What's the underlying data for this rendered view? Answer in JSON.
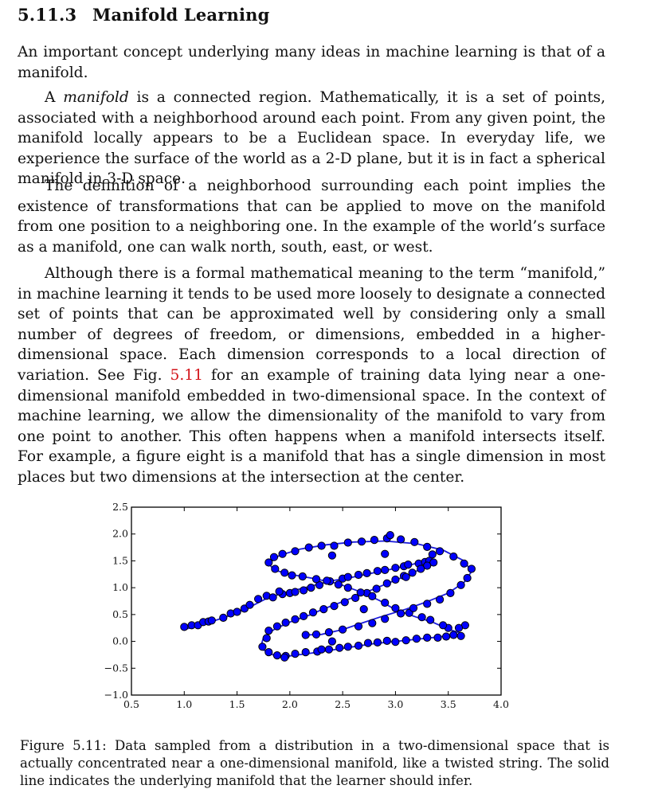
{
  "section": {
    "number": "5.11.3",
    "title": "Manifold Learning"
  },
  "paragraphs": {
    "p1": "An important concept underlying many ideas in machine learning is that of a manifold.",
    "p2_em": "manifold",
    "p2_pre": "A ",
    "p2_post": " is a connected region. Mathematically, it is a set of points, associated with a neighborhood around each point. From any given point, the manifold locally appears to be a Euclidean space. In everyday life, we experience the surface of the world as a 2-D plane, but it is in fact a spherical manifold in 3-D space.",
    "p3": "The definition of a neighborhood surrounding each point implies the existence of transformations that can be applied to move on the manifold from one position to a neighboring one. In the example of the world’s surface as a manifold, one can walk north, south, east, or west.",
    "p4_pre": "Although there is a formal mathematical meaning to the term “manifold,” in machine learning it tends to be used more loosely to designate a connected set of points that can be approximated well by considering only a small number of degrees of freedom, or dimensions, embedded in a higher-dimensional space. Each dimension corresponds to a local direction of variation. See Fig. ",
    "p4_ref": "5.11",
    "p4_post": " for an example of training data lying near a one-dimensional manifold embedded in two-dimensional space. In the context of machine learning, we allow the dimensionality of the manifold to vary from one point to another. This often happens when a manifold intersects itself. For example, a figure eight is a manifold that has a single dimension in most places but two dimensions at the intersection at the center."
  },
  "caption": "Figure 5.11: Data sampled from a distribution in a two-dimensional space that is actually concentrated near a one-dimensional manifold, like a twisted string. The solid line indicates the underlying manifold that the learner should infer.",
  "colors": {
    "curve": "#1b1bdc",
    "points": "#0000ff",
    "point_edge": "#000000"
  },
  "chart_data": {
    "type": "scatter",
    "title": "",
    "xlabel": "",
    "ylabel": "",
    "xlim": [
      0.5,
      4.0
    ],
    "ylim": [
      -1.0,
      2.5
    ],
    "x_ticks": [
      "0.5",
      "1.0",
      "1.5",
      "2.0",
      "2.5",
      "3.0",
      "3.5",
      "4.0"
    ],
    "y_ticks": [
      "2.5",
      "2.0",
      "1.5",
      "1.0",
      "0.5",
      "0.0",
      "−0.5",
      "−1.0"
    ],
    "grid": false,
    "legend": "none",
    "curve": [
      [
        1.0,
        0.22
      ],
      [
        1.2,
        0.33
      ],
      [
        1.4,
        0.46
      ],
      [
        1.6,
        0.62
      ],
      [
        1.8,
        0.82
      ],
      [
        2.0,
        0.93
      ],
      [
        2.2,
        1.03
      ],
      [
        2.4,
        1.13
      ],
      [
        2.6,
        1.2
      ],
      [
        2.8,
        1.28
      ],
      [
        3.0,
        1.36
      ],
      [
        3.15,
        1.43
      ],
      [
        3.3,
        1.5
      ],
      [
        3.35,
        1.45
      ],
      [
        3.3,
        1.39
      ],
      [
        3.2,
        1.31
      ],
      [
        3.05,
        1.18
      ],
      [
        2.9,
        1.06
      ],
      [
        2.7,
        0.9
      ],
      [
        2.5,
        0.74
      ],
      [
        2.3,
        0.59
      ],
      [
        2.2,
        0.5
      ],
      [
        2.0,
        0.36
      ],
      [
        1.85,
        0.22
      ],
      [
        1.75,
        0.07
      ],
      [
        1.72,
        -0.13
      ],
      [
        1.85,
        -0.26
      ],
      [
        2.0,
        -0.27
      ],
      [
        2.2,
        -0.22
      ],
      [
        2.4,
        -0.16
      ],
      [
        2.6,
        -0.1
      ],
      [
        2.8,
        -0.04
      ],
      [
        3.0,
        0.0
      ],
      [
        3.2,
        0.04
      ],
      [
        3.4,
        0.08
      ],
      [
        3.55,
        0.12
      ],
      [
        3.65,
        0.13
      ],
      [
        3.5,
        0.23
      ],
      [
        3.35,
        0.36
      ],
      [
        3.2,
        0.45
      ],
      [
        3.0,
        0.59
      ],
      [
        2.85,
        0.76
      ],
      [
        2.7,
        0.9
      ],
      [
        2.45,
        1.08
      ],
      [
        2.2,
        1.18
      ],
      [
        2.0,
        1.25
      ],
      [
        1.85,
        1.33
      ],
      [
        1.8,
        1.45
      ],
      [
        1.9,
        1.6
      ],
      [
        2.1,
        1.72
      ],
      [
        2.35,
        1.8
      ],
      [
        2.6,
        1.85
      ],
      [
        2.9,
        1.87
      ],
      [
        3.2,
        1.82
      ],
      [
        3.45,
        1.7
      ],
      [
        3.65,
        1.5
      ],
      [
        3.72,
        1.3
      ],
      [
        3.65,
        1.1
      ],
      [
        3.5,
        0.9
      ],
      [
        3.3,
        0.74
      ],
      [
        3.1,
        0.6
      ],
      [
        2.85,
        0.45
      ],
      [
        2.65,
        0.32
      ],
      [
        2.5,
        0.22
      ],
      [
        2.3,
        0.13
      ],
      [
        2.15,
        0.12
      ]
    ],
    "points": [
      [
        1.0,
        0.27
      ],
      [
        1.07,
        0.3
      ],
      [
        1.13,
        0.3
      ],
      [
        1.18,
        0.36
      ],
      [
        1.23,
        0.37
      ],
      [
        1.26,
        0.39
      ],
      [
        1.37,
        0.44
      ],
      [
        1.44,
        0.52
      ],
      [
        1.5,
        0.55
      ],
      [
        1.57,
        0.61
      ],
      [
        1.62,
        0.68
      ],
      [
        1.7,
        0.79
      ],
      [
        1.78,
        0.85
      ],
      [
        1.84,
        0.82
      ],
      [
        1.93,
        0.88
      ],
      [
        2.0,
        0.9
      ],
      [
        2.05,
        0.92
      ],
      [
        2.13,
        0.95
      ],
      [
        2.2,
        1.0
      ],
      [
        2.28,
        1.05
      ],
      [
        2.38,
        1.12
      ],
      [
        2.5,
        1.17
      ],
      [
        2.55,
        1.2
      ],
      [
        2.65,
        1.24
      ],
      [
        2.73,
        1.27
      ],
      [
        2.83,
        1.31
      ],
      [
        2.9,
        1.33
      ],
      [
        3.0,
        1.37
      ],
      [
        3.08,
        1.4
      ],
      [
        3.12,
        1.43
      ],
      [
        3.22,
        1.45
      ],
      [
        3.28,
        1.48
      ],
      [
        3.32,
        1.5
      ],
      [
        3.36,
        1.47
      ],
      [
        3.3,
        1.41
      ],
      [
        3.24,
        1.35
      ],
      [
        3.16,
        1.28
      ],
      [
        3.08,
        1.22
      ],
      [
        3.0,
        1.15
      ],
      [
        2.92,
        1.08
      ],
      [
        2.82,
        0.98
      ],
      [
        2.73,
        0.9
      ],
      [
        2.62,
        0.81
      ],
      [
        2.52,
        0.73
      ],
      [
        2.42,
        0.66
      ],
      [
        2.32,
        0.6
      ],
      [
        2.22,
        0.54
      ],
      [
        2.13,
        0.47
      ],
      [
        2.05,
        0.41
      ],
      [
        1.96,
        0.35
      ],
      [
        1.88,
        0.28
      ],
      [
        1.8,
        0.2
      ],
      [
        1.78,
        0.06
      ],
      [
        1.74,
        -0.1
      ],
      [
        1.8,
        -0.2
      ],
      [
        1.88,
        -0.26
      ],
      [
        1.96,
        -0.27
      ],
      [
        2.05,
        -0.23
      ],
      [
        2.15,
        -0.2
      ],
      [
        2.26,
        -0.19
      ],
      [
        2.37,
        -0.15
      ],
      [
        2.47,
        -0.12
      ],
      [
        2.55,
        -0.1
      ],
      [
        2.65,
        -0.08
      ],
      [
        2.74,
        -0.03
      ],
      [
        2.83,
        -0.02
      ],
      [
        2.92,
        0.01
      ],
      [
        3.0,
        -0.01
      ],
      [
        3.1,
        0.02
      ],
      [
        3.2,
        0.05
      ],
      [
        3.3,
        0.07
      ],
      [
        3.4,
        0.07
      ],
      [
        3.48,
        0.09
      ],
      [
        3.55,
        0.12
      ],
      [
        3.62,
        0.1
      ],
      [
        3.66,
        0.3
      ],
      [
        3.6,
        0.25
      ],
      [
        3.5,
        0.25
      ],
      [
        3.45,
        0.3
      ],
      [
        3.33,
        0.4
      ],
      [
        3.25,
        0.45
      ],
      [
        3.13,
        0.53
      ],
      [
        3.0,
        0.62
      ],
      [
        2.9,
        0.72
      ],
      [
        2.78,
        0.84
      ],
      [
        2.67,
        0.91
      ],
      [
        2.55,
        1.0
      ],
      [
        2.46,
        1.06
      ],
      [
        2.35,
        1.13
      ],
      [
        2.25,
        1.16
      ],
      [
        2.12,
        1.21
      ],
      [
        2.02,
        1.23
      ],
      [
        1.95,
        1.28
      ],
      [
        1.86,
        1.35
      ],
      [
        1.8,
        1.47
      ],
      [
        1.85,
        1.57
      ],
      [
        1.93,
        1.63
      ],
      [
        2.05,
        1.68
      ],
      [
        2.18,
        1.75
      ],
      [
        2.3,
        1.78
      ],
      [
        2.42,
        1.78
      ],
      [
        2.55,
        1.84
      ],
      [
        2.68,
        1.86
      ],
      [
        2.8,
        1.89
      ],
      [
        2.92,
        1.92
      ],
      [
        3.05,
        1.9
      ],
      [
        3.18,
        1.85
      ],
      [
        3.3,
        1.76
      ],
      [
        3.42,
        1.68
      ],
      [
        3.55,
        1.58
      ],
      [
        3.65,
        1.45
      ],
      [
        3.72,
        1.35
      ],
      [
        3.68,
        1.18
      ],
      [
        3.62,
        1.05
      ],
      [
        3.52,
        0.9
      ],
      [
        3.42,
        0.78
      ],
      [
        3.3,
        0.7
      ],
      [
        3.17,
        0.62
      ],
      [
        3.05,
        0.52
      ],
      [
        2.9,
        0.42
      ],
      [
        2.78,
        0.34
      ],
      [
        2.65,
        0.28
      ],
      [
        2.5,
        0.22
      ],
      [
        2.37,
        0.17
      ],
      [
        2.25,
        0.13
      ],
      [
        2.15,
        0.12
      ],
      [
        2.4,
        1.6
      ],
      [
        2.9,
        1.63
      ],
      [
        2.7,
        0.6
      ],
      [
        3.1,
        1.2
      ],
      [
        1.9,
        0.93
      ],
      [
        2.3,
        -0.15
      ],
      [
        1.95,
        -0.3
      ],
      [
        2.4,
        0.0
      ],
      [
        2.95,
        1.98
      ],
      [
        3.35,
        1.62
      ]
    ]
  }
}
